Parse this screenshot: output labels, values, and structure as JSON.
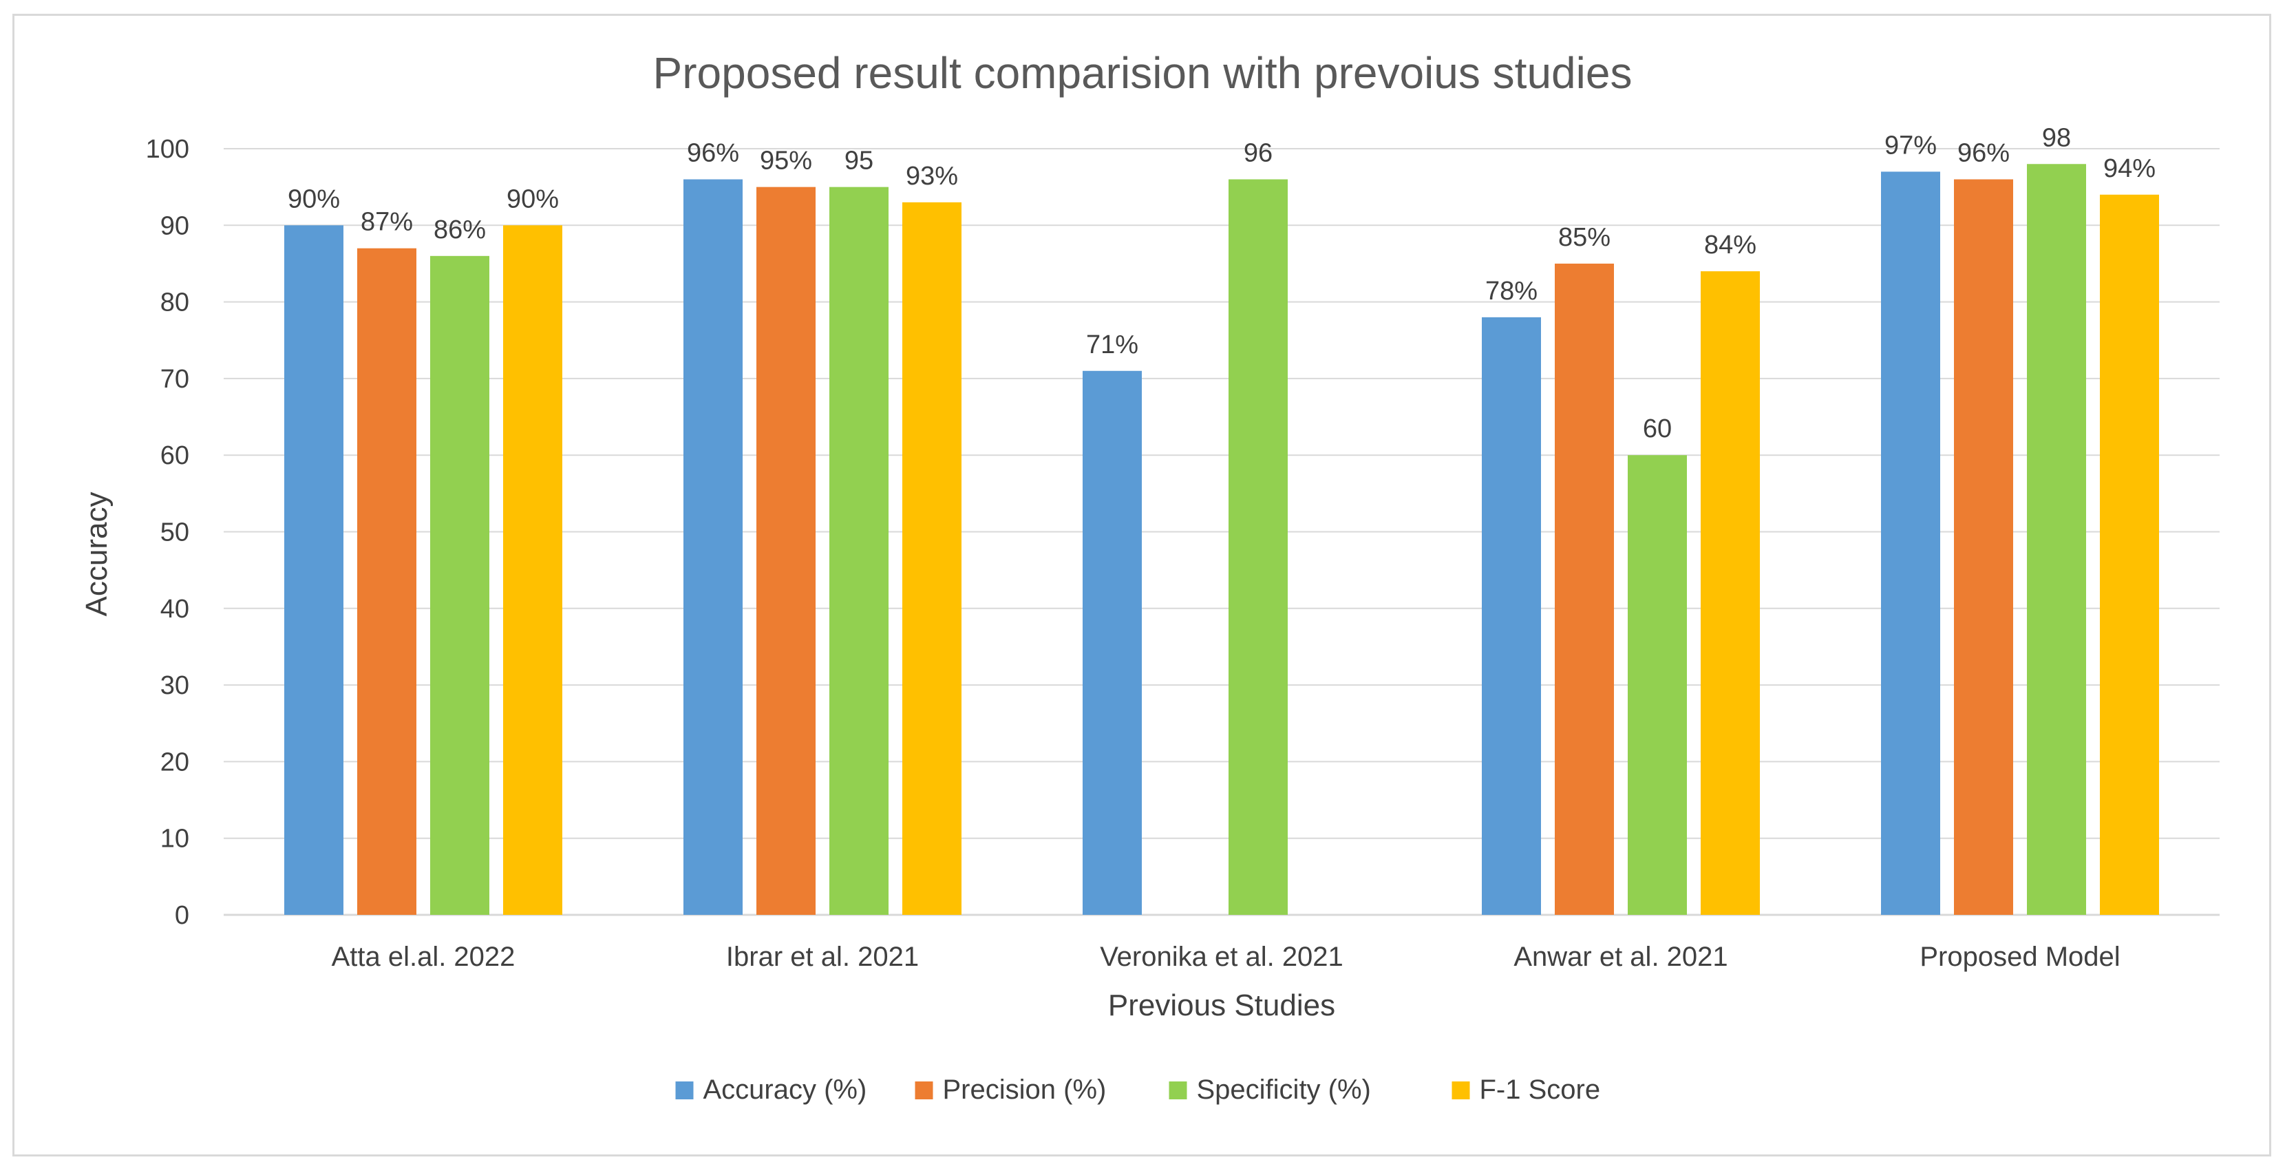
{
  "chart_data": {
    "type": "bar",
    "title": "Proposed result comparision with prevoius studies",
    "xlabel": "Previous Studies",
    "ylabel": "Accuracy",
    "ylim": [
      0,
      100
    ],
    "yticks": [
      0,
      10,
      20,
      30,
      40,
      50,
      60,
      70,
      80,
      90,
      100
    ],
    "grid": true,
    "legend_position": "bottom",
    "categories": [
      "Atta el.al. 2022",
      "Ibrar et al. 2021",
      "Veronika et al. 2021",
      "Anwar et al. 2021",
      "Proposed Model"
    ],
    "series": [
      {
        "name": "Accuracy (%)",
        "color": "#5b9bd5",
        "values": [
          90,
          96,
          71,
          78,
          97
        ],
        "labels": [
          "90%",
          "96%",
          "71%",
          "78%",
          "97%"
        ]
      },
      {
        "name": "Precision (%)",
        "color": "#ed7d31",
        "values": [
          87,
          95,
          null,
          85,
          96
        ],
        "labels": [
          "87%",
          "95%",
          null,
          "85%",
          "96%"
        ]
      },
      {
        "name": "Specificity (%)",
        "color": "#92d050",
        "values": [
          86,
          95,
          96,
          60,
          98
        ],
        "labels": [
          "86%",
          "95",
          "96",
          "60",
          "98"
        ]
      },
      {
        "name": "F-1 Score",
        "color": "#ffc000",
        "values": [
          90,
          93,
          null,
          84,
          94
        ],
        "labels": [
          "90%",
          "93%",
          null,
          "84%",
          "94%"
        ]
      }
    ]
  }
}
